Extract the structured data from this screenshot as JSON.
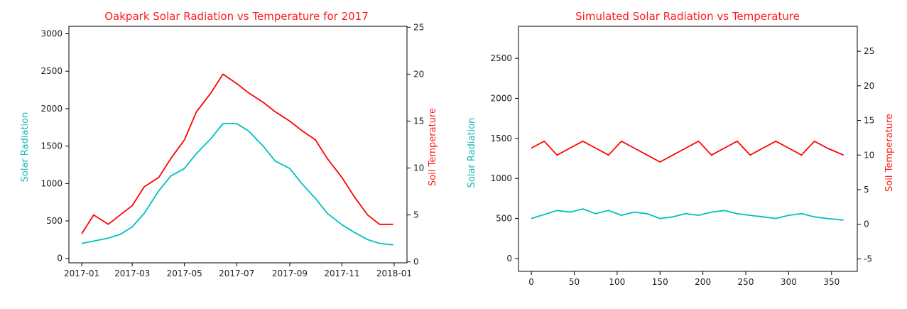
{
  "chart_data": [
    {
      "type": "line",
      "title": "Oakpark Solar Radiation vs Temperature for 2017",
      "title_color": "#ff1a1a",
      "xlabel": "",
      "ylabel": "Solar Radiation",
      "ylabel_color": "#1ab8b8",
      "y2label": "Soil Temperature",
      "y2label_color": "#ff1a1a",
      "x_type": "date",
      "x_ticks": [
        "2017-01",
        "2017-03",
        "2017-05",
        "2017-07",
        "2017-09",
        "2017-11",
        "2018-01"
      ],
      "y_ticks": [
        "0",
        "500",
        "1000",
        "1500",
        "2000",
        "2500",
        "3000"
      ],
      "y2_ticks": [
        "0",
        "5",
        "10",
        "15",
        "20",
        "25"
      ],
      "ylim": [
        -60,
        3100
      ],
      "y2lim": [
        -0.1,
        25.1
      ],
      "series": [
        {
          "axis": "left",
          "color": "#00bfbf",
          "x": [
            "2017-01-01",
            "2017-01-15",
            "2017-02-01",
            "2017-02-15",
            "2017-03-01",
            "2017-03-15",
            "2017-04-01",
            "2017-04-15",
            "2017-05-01",
            "2017-05-15",
            "2017-06-01",
            "2017-06-15",
            "2017-07-01",
            "2017-07-15",
            "2017-08-01",
            "2017-08-15",
            "2017-09-01",
            "2017-09-15",
            "2017-10-01",
            "2017-10-15",
            "2017-11-01",
            "2017-11-15",
            "2017-12-01",
            "2017-12-15",
            "2017-12-31"
          ],
          "values": [
            200,
            230,
            270,
            320,
            420,
            600,
            900,
            1100,
            1200,
            1400,
            1600,
            1800,
            1800,
            1700,
            1500,
            1300,
            1200,
            1000,
            800,
            600,
            450,
            350,
            250,
            200,
            180
          ]
        },
        {
          "axis": "right",
          "color": "#ff0000",
          "x": [
            "2017-01-01",
            "2017-01-15",
            "2017-02-01",
            "2017-02-15",
            "2017-03-01",
            "2017-03-15",
            "2017-04-01",
            "2017-04-15",
            "2017-05-01",
            "2017-05-15",
            "2017-06-01",
            "2017-06-15",
            "2017-07-01",
            "2017-07-15",
            "2017-08-01",
            "2017-08-15",
            "2017-09-01",
            "2017-09-15",
            "2017-10-01",
            "2017-10-15",
            "2017-11-01",
            "2017-11-15",
            "2017-12-01",
            "2017-12-15",
            "2017-12-31"
          ],
          "values": [
            3,
            5,
            4,
            5,
            6,
            8,
            9,
            11,
            13,
            16,
            18,
            20,
            19,
            18,
            17,
            16,
            15,
            14,
            13,
            11,
            9,
            7,
            5,
            4,
            4
          ]
        }
      ]
    },
    {
      "type": "line",
      "title": "Simulated Solar Radiation vs Temperature",
      "title_color": "#ff1a1a",
      "xlabel": "",
      "ylabel": "Solar Radiation",
      "ylabel_color": "#1ab8b8",
      "y2label": "Soil Temperature",
      "y2label_color": "#ff1a1a",
      "x_type": "number",
      "x_ticks": [
        "0",
        "50",
        "100",
        "150",
        "200",
        "250",
        "300",
        "350"
      ],
      "y_ticks": [
        "0",
        "500",
        "1000",
        "1500",
        "2000",
        "2500"
      ],
      "y2_ticks": [
        "-5",
        "0",
        "5",
        "10",
        "15",
        "20",
        "25"
      ],
      "xlim": [
        -15,
        380
      ],
      "ylim": [
        -160,
        2900
      ],
      "y2lim": [
        -6.8,
        28.6
      ],
      "series": [
        {
          "axis": "left",
          "color": "#00bfbf",
          "x": [
            0,
            15,
            30,
            45,
            60,
            75,
            90,
            105,
            120,
            135,
            150,
            165,
            180,
            195,
            210,
            225,
            240,
            255,
            270,
            285,
            300,
            315,
            330,
            345,
            364
          ],
          "values": [
            500,
            550,
            600,
            580,
            620,
            560,
            600,
            540,
            580,
            560,
            500,
            520,
            560,
            540,
            580,
            600,
            560,
            540,
            520,
            500,
            540,
            560,
            520,
            500,
            480
          ]
        },
        {
          "axis": "right",
          "color": "#ff0000",
          "x": [
            0,
            15,
            30,
            45,
            60,
            75,
            90,
            105,
            120,
            135,
            150,
            165,
            180,
            195,
            210,
            225,
            240,
            255,
            270,
            285,
            300,
            315,
            330,
            345,
            364
          ],
          "values": [
            11,
            12,
            10,
            11,
            12,
            11,
            10,
            12,
            11,
            10,
            9,
            10,
            11,
            12,
            10,
            11,
            12,
            10,
            11,
            12,
            11,
            10,
            12,
            11,
            10
          ]
        }
      ]
    }
  ]
}
